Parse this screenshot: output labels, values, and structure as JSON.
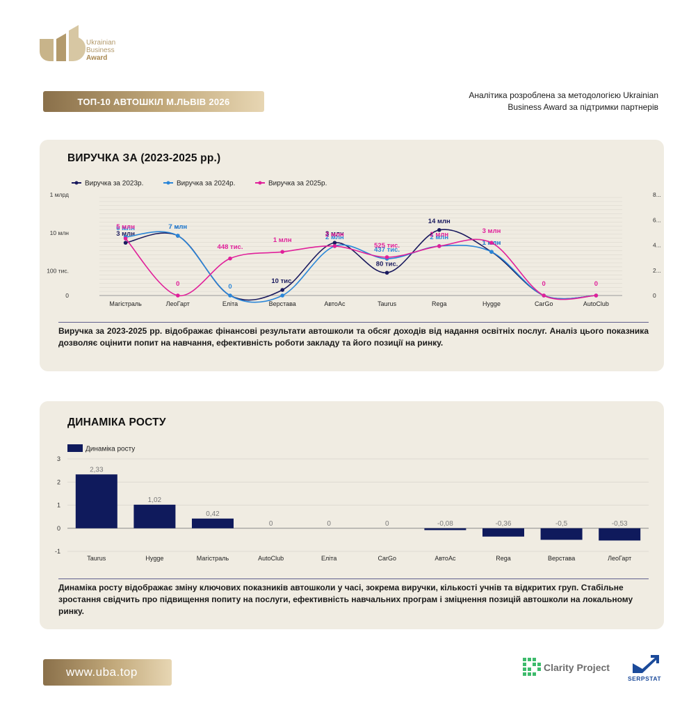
{
  "brand": {
    "line1": "Ukrainian",
    "line2": "Business",
    "line3": "Award",
    "color": "#b39a6c"
  },
  "header": {
    "title": "ТОП-10 АВТОШКІЛ М.ЛЬВІВ 2026",
    "note_line1": "Аналітика розроблена за методологією Ukrainian",
    "note_line2": "Business Award за підтримки партнерів"
  },
  "revenue": {
    "title": "ВИРУЧКА ЗА (2023-2025 рр.)",
    "description": "Виручка за 2023-2025 рр. відображає фінансові результати автошколи та обсяг доходів від надання освітніх послуг. Аналіз цього показника дозволяє оцінити попит на навчання, ефективність роботи закладу та його позиції на ринку."
  },
  "growth": {
    "title": "ДИНАМІКА РОСТУ",
    "description": "Динаміка росту відображає зміну ключових показників автошколи у часі, зокрема виручки, кількості учнів та відкритих груп. Стабільне зростання свідчить про підвищення попиту на послуги, ефективність навчальних програм і зміцнення позицій автошколи на локальному ринку."
  },
  "footer": {
    "url": "www.uba.top",
    "partner1": "Clarity Project",
    "partner2": "SERPSTAT"
  },
  "chart_data": [
    {
      "type": "line",
      "title": "ВИРУЧКА ЗА (2023-2025 рр.)",
      "y_scale": "log",
      "y_ticks_left": [
        "0",
        "100 тис.",
        "10 млн",
        "1 млрд"
      ],
      "y_ticks_right": [
        "0",
        "2...",
        "4...",
        "6...",
        "8..."
      ],
      "legend_position": "top-left",
      "grid": true,
      "categories": [
        "Магістраль",
        "ЛеоГарт",
        "Еліта",
        "Верстава",
        "АвтоАс",
        "Taurus",
        "Rega",
        "Hygge",
        "CarGo",
        "AutoClub"
      ],
      "series": [
        {
          "name": "Виручка за 2023р.",
          "color": "#1a1a5e",
          "values": [
            3000000,
            7000000,
            0,
            10000,
            3000000,
            80000,
            14000000,
            1000000,
            0,
            0
          ],
          "labels": [
            "3 млн",
            "7 млн",
            "",
            "10 тис.",
            "3 млн",
            "80 тис.",
            "14 млн",
            "1 млн",
            "",
            ""
          ]
        },
        {
          "name": "Виручка за 2024р.",
          "color": "#2a86d8",
          "values": [
            6000000,
            7000000,
            0,
            0,
            2000000,
            437000,
            2000000,
            1000000,
            0,
            0
          ],
          "labels": [
            "6 млн",
            "7 млн",
            "0",
            "",
            "2 млн",
            "437 тис.",
            "2 млн",
            "1 млн",
            "",
            ""
          ]
        },
        {
          "name": "Виручка за 2025р.",
          "color": "#e0209a",
          "values": [
            5000000,
            0,
            448000,
            1000000,
            2000000,
            525000,
            2000000,
            3000000,
            0,
            0
          ],
          "labels": [
            "5 млн",
            "0",
            "448 тис.",
            "1 млн",
            "2 млн",
            "525 тис.",
            "2 млн",
            "3 млн",
            "0",
            "0"
          ]
        }
      ]
    },
    {
      "type": "bar",
      "title": "ДИНАМІКА РОСТУ",
      "legend_position": "top-left",
      "grid": true,
      "ylim": [
        -1,
        3
      ],
      "y_ticks": [
        3,
        2,
        1,
        0,
        -1
      ],
      "color": "#0f1a5c",
      "categories": [
        "Taurus",
        "Hygge",
        "Магістраль",
        "AutoClub",
        "Еліта",
        "CarGo",
        "АвтоАс",
        "Rega",
        "Верстава",
        "ЛеоГарт"
      ],
      "series": [
        {
          "name": "Динаміка росту",
          "values": [
            2.33,
            1.02,
            0.42,
            0,
            0,
            0,
            -0.08,
            -0.36,
            -0.5,
            -0.53
          ],
          "labels": [
            "2,33",
            "1,02",
            "0,42",
            "0",
            "0",
            "0",
            "-0,08",
            "-0,36",
            "-0,5",
            "-0,53"
          ]
        }
      ]
    }
  ]
}
